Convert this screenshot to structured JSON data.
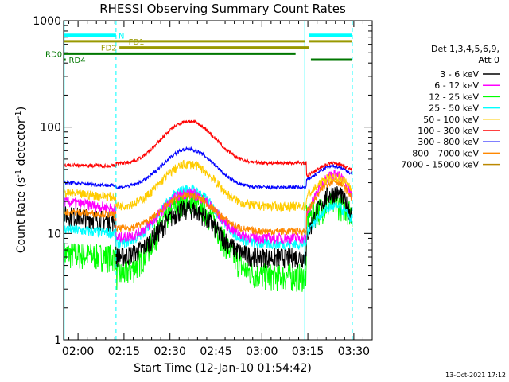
{
  "chart_data": {
    "type": "line",
    "title": "RHESSI Observing Summary Count Rates",
    "xlabel": "Start Time (12-Jan-10 01:54:42)",
    "ylabel": "Count Rate (s",
    "ylabel_sup1": "-1",
    "ylabel_mid": " detector",
    "ylabel_sup2": "-1",
    "ylabel_end": ")",
    "yscale": "log",
    "ylim": [
      1,
      1000
    ],
    "xlim_minutes": [
      -4.7,
      96
    ],
    "x_ticks": [
      {
        "label": "02:00",
        "t": 0
      },
      {
        "label": "02:15",
        "t": 15
      },
      {
        "label": "02:30",
        "t": 30
      },
      {
        "label": "02:45",
        "t": 45
      },
      {
        "label": "03:00",
        "t": 60
      },
      {
        "label": "03:15",
        "t": 75
      },
      {
        "label": "03:30",
        "t": 90
      }
    ],
    "y_ticks": [
      {
        "label": "1",
        "v": 1
      },
      {
        "label": "10",
        "v": 10
      },
      {
        "label": "100",
        "v": 100
      },
      {
        "label": "1000",
        "v": 1000
      }
    ],
    "legend_header": [
      "Det 1,3,4,5,6,9,",
      "Att 0"
    ],
    "vlines_cyan_solid_t": [
      -4.5,
      74
    ],
    "vlines_cyan_dashed_t": [
      12.4,
      89.5
    ],
    "series": [
      {
        "name": "3 - 6 keV",
        "color": "#000000",
        "base": [
          15,
          13,
          6,
          6,
          6
        ],
        "peak1": 17,
        "peak2": 24,
        "noise": 0.22
      },
      {
        "name": "6 - 12 keV",
        "color": "#ff00ff",
        "base": [
          20,
          17,
          9,
          9,
          10
        ],
        "peak1": 24,
        "peak2": 36,
        "noise": 0.12
      },
      {
        "name": "12 - 25 keV",
        "color": "#00ff00",
        "base": [
          6.5,
          6,
          4,
          4,
          13
        ],
        "peak1": 21,
        "peak2": 19,
        "noise": 0.3
      },
      {
        "name": "25 - 50 keV",
        "color": "#00ffff",
        "base": [
          11,
          10,
          8,
          8,
          8.5
        ],
        "peak1": 26,
        "peak2": 18,
        "noise": 0.12
      },
      {
        "name": "50 - 100 keV",
        "color": "#ffcc00",
        "base": [
          24,
          22,
          18,
          18,
          20
        ],
        "peak1": 45,
        "peak2": 34,
        "noise": 0.1
      },
      {
        "name": "100 - 300 keV",
        "color": "#ff0000",
        "base": [
          44,
          43,
          45,
          46,
          32
        ],
        "peak1": 113,
        "peak2": 46,
        "noise": 0.04
      },
      {
        "name": "300 - 800 keV",
        "color": "#0000ff",
        "base": [
          30,
          28,
          27,
          27,
          29
        ],
        "peak1": 62,
        "peak2": 43,
        "noise": 0.04
      },
      {
        "name": "800 - 7000 keV",
        "color": "#ff8800",
        "base": [
          16,
          15,
          11,
          10.5,
          12
        ],
        "peak1": 23,
        "peak2": 31,
        "noise": 0.08
      },
      {
        "name": "7000 - 15000 keV",
        "color": "#bb8800",
        "base": [
          1,
          1,
          1,
          1,
          1
        ],
        "peak1": 1,
        "peak2": 1,
        "noise": 0
      }
    ],
    "flags": [
      {
        "label": "N",
        "color": "#00ffff",
        "segments": [
          [
            -4.5,
            12.4
          ],
          [
            75.5,
            89.5
          ]
        ],
        "v": 730,
        "width": 4,
        "label_t": 13.2,
        "label_anchor": "start"
      },
      {
        "label": "FD1",
        "color": "#999900",
        "segments": [
          [
            -4.5,
            74
          ],
          [
            75.5,
            89.5
          ]
        ],
        "v": 640,
        "width": 3,
        "label_t": 16.5,
        "label_anchor": "start"
      },
      {
        "label": "FD2",
        "color": "#999900",
        "segments": [
          [
            13.5,
            75.5
          ]
        ],
        "v": 560,
        "width": 3,
        "label_t": 12.6,
        "label_anchor": "end"
      },
      {
        "label": "RD0",
        "color": "#007700",
        "segments": [
          [
            -4.5,
            71
          ]
        ],
        "v": 490,
        "width": 3,
        "label_t": -5.2,
        "label_anchor": "end"
      },
      {
        "label": "RD4",
        "color": "#007700",
        "segments": [
          [
            -4.5,
            -4.0
          ],
          [
            76,
            89.5
          ]
        ],
        "v": 430,
        "width": 3,
        "label_t": -3.0,
        "label_anchor": "start"
      }
    ],
    "timestamp": "13-Oct-2021 17:12"
  }
}
